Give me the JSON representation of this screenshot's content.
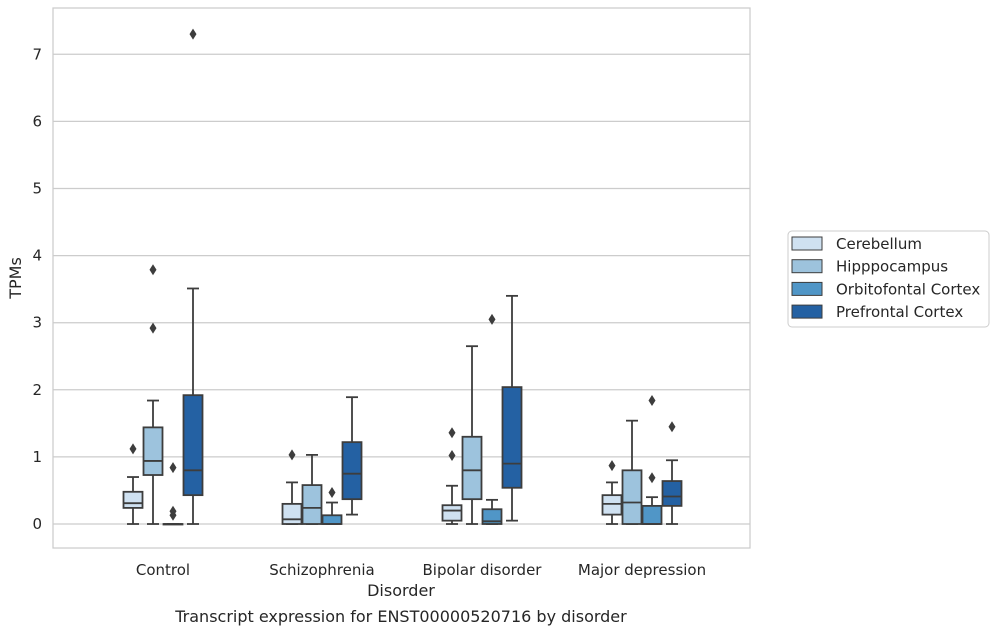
{
  "chart_data": {
    "type": "box",
    "title": "",
    "caption": "Transcript expression for ENST00000520716 by disorder",
    "xlabel": "Disorder",
    "ylabel": "TPMs",
    "ylim": [
      -0.35,
      7.7
    ],
    "yticks": [
      0,
      1,
      2,
      3,
      4,
      5,
      6,
      7
    ],
    "grid": true,
    "legend_position": "right",
    "categories": [
      "Control",
      "Schizophrenia",
      "Bipolar disorder",
      "Major depression"
    ],
    "series": [
      {
        "name": "Cerebellum",
        "color": "#cfe1f1",
        "boxes": [
          {
            "whisker_low": 0.0,
            "q1": 0.24,
            "median": 0.31,
            "q3": 0.48,
            "whisker_high": 0.7,
            "outliers": [
              1.12
            ]
          },
          {
            "whisker_low": 0.0,
            "q1": 0.0,
            "median": 0.07,
            "q3": 0.3,
            "whisker_high": 0.62,
            "outliers": [
              1.03
            ]
          },
          {
            "whisker_low": 0.0,
            "q1": 0.05,
            "median": 0.2,
            "q3": 0.28,
            "whisker_high": 0.57,
            "outliers": [
              1.02,
              1.36
            ]
          },
          {
            "whisker_low": 0.0,
            "q1": 0.14,
            "median": 0.3,
            "q3": 0.43,
            "whisker_high": 0.62,
            "outliers": [
              0.87
            ]
          }
        ]
      },
      {
        "name": "Hipppocampus",
        "color": "#9dc3dd",
        "boxes": [
          {
            "whisker_low": 0.0,
            "q1": 0.73,
            "median": 0.94,
            "q3": 1.44,
            "whisker_high": 1.84,
            "outliers": [
              2.92,
              3.79
            ]
          },
          {
            "whisker_low": 0.0,
            "q1": 0.0,
            "median": 0.24,
            "q3": 0.58,
            "whisker_high": 1.03,
            "outliers": []
          },
          {
            "whisker_low": 0.0,
            "q1": 0.37,
            "median": 0.8,
            "q3": 1.3,
            "whisker_high": 2.65,
            "outliers": []
          },
          {
            "whisker_low": 0.0,
            "q1": 0.0,
            "median": 0.32,
            "q3": 0.8,
            "whisker_high": 1.54,
            "outliers": []
          }
        ]
      },
      {
        "name": "Orbitofontal Cortex",
        "color": "#5096c7",
        "boxes": [
          {
            "whisker_low": 0.0,
            "q1": 0.0,
            "median": 0.0,
            "q3": 0.0,
            "whisker_high": 0.0,
            "outliers": [
              0.13,
              0.19,
              0.84
            ]
          },
          {
            "whisker_low": 0.0,
            "q1": 0.0,
            "median": 0.0,
            "q3": 0.13,
            "whisker_high": 0.32,
            "outliers": [
              0.47
            ]
          },
          {
            "whisker_low": 0.0,
            "q1": 0.0,
            "median": 0.04,
            "q3": 0.22,
            "whisker_high": 0.36,
            "outliers": [
              3.05
            ]
          },
          {
            "whisker_low": 0.0,
            "q1": 0.0,
            "median": 0.0,
            "q3": 0.27,
            "whisker_high": 0.4,
            "outliers": [
              0.69,
              1.84
            ]
          }
        ]
      },
      {
        "name": "Prefrontal Cortex",
        "color": "#2461a3",
        "boxes": [
          {
            "whisker_low": 0.0,
            "q1": 0.43,
            "median": 0.8,
            "q3": 1.92,
            "whisker_high": 3.51,
            "outliers": [
              7.3
            ]
          },
          {
            "whisker_low": 0.14,
            "q1": 0.37,
            "median": 0.75,
            "q3": 1.22,
            "whisker_high": 1.89,
            "outliers": []
          },
          {
            "whisker_low": 0.05,
            "q1": 0.54,
            "median": 0.9,
            "q3": 2.04,
            "whisker_high": 3.4,
            "outliers": []
          },
          {
            "whisker_low": 0.0,
            "q1": 0.27,
            "median": 0.41,
            "q3": 0.64,
            "whisker_high": 0.95,
            "outliers": [
              1.45
            ]
          }
        ]
      }
    ]
  }
}
